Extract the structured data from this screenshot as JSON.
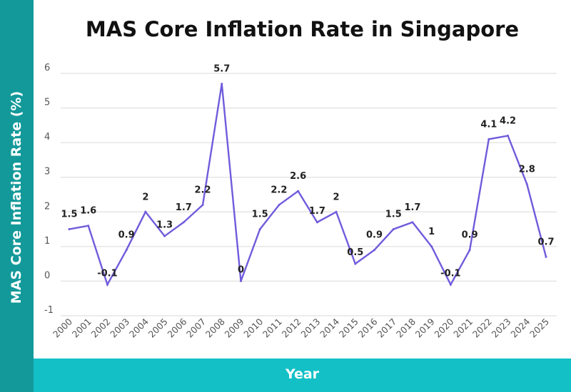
{
  "chart_data": {
    "type": "line",
    "title": "MAS Core Inflation Rate in Singapore",
    "xlabel": "Year",
    "ylabel": "MAS Core Inflation Rate (%)",
    "categories": [
      "2000",
      "2001",
      "2002",
      "2003",
      "2004",
      "2005",
      "2006",
      "2007",
      "2008",
      "2009",
      "2010",
      "2011",
      "2012",
      "2013",
      "2014",
      "2015",
      "2016",
      "2017",
      "2018",
      "2019",
      "2020",
      "2021",
      "2022",
      "2023",
      "2024",
      "2025"
    ],
    "values": [
      1.5,
      1.6,
      -0.1,
      0.9,
      2,
      1.3,
      1.7,
      2.2,
      5.7,
      0,
      1.5,
      2.2,
      2.6,
      1.7,
      2,
      0.5,
      0.9,
      1.5,
      1.7,
      1,
      -0.1,
      0.9,
      4.1,
      4.2,
      2.8,
      0.7
    ],
    "data_labels": [
      "1.5",
      "1.6",
      "-0.1",
      "0.9",
      "2",
      "1.3",
      "1.7",
      "2.2",
      "5.7",
      "0",
      "1.5",
      "2.2",
      "2.6",
      "1.7",
      "2",
      "0.5",
      "0.9",
      "1.5",
      "1.7",
      "1",
      "-0.1",
      "0.9",
      "4.1",
      "4.2",
      "2.8",
      "0.7"
    ],
    "yticks": [
      "-1",
      "0",
      "1",
      "2",
      "3",
      "4",
      "5",
      "6"
    ],
    "ylim": [
      -1,
      6
    ],
    "grid": true,
    "colors": {
      "line": "#6f5cdc",
      "ylabel_band": "#13999a",
      "xlabel_band": "#13c0c6"
    }
  }
}
